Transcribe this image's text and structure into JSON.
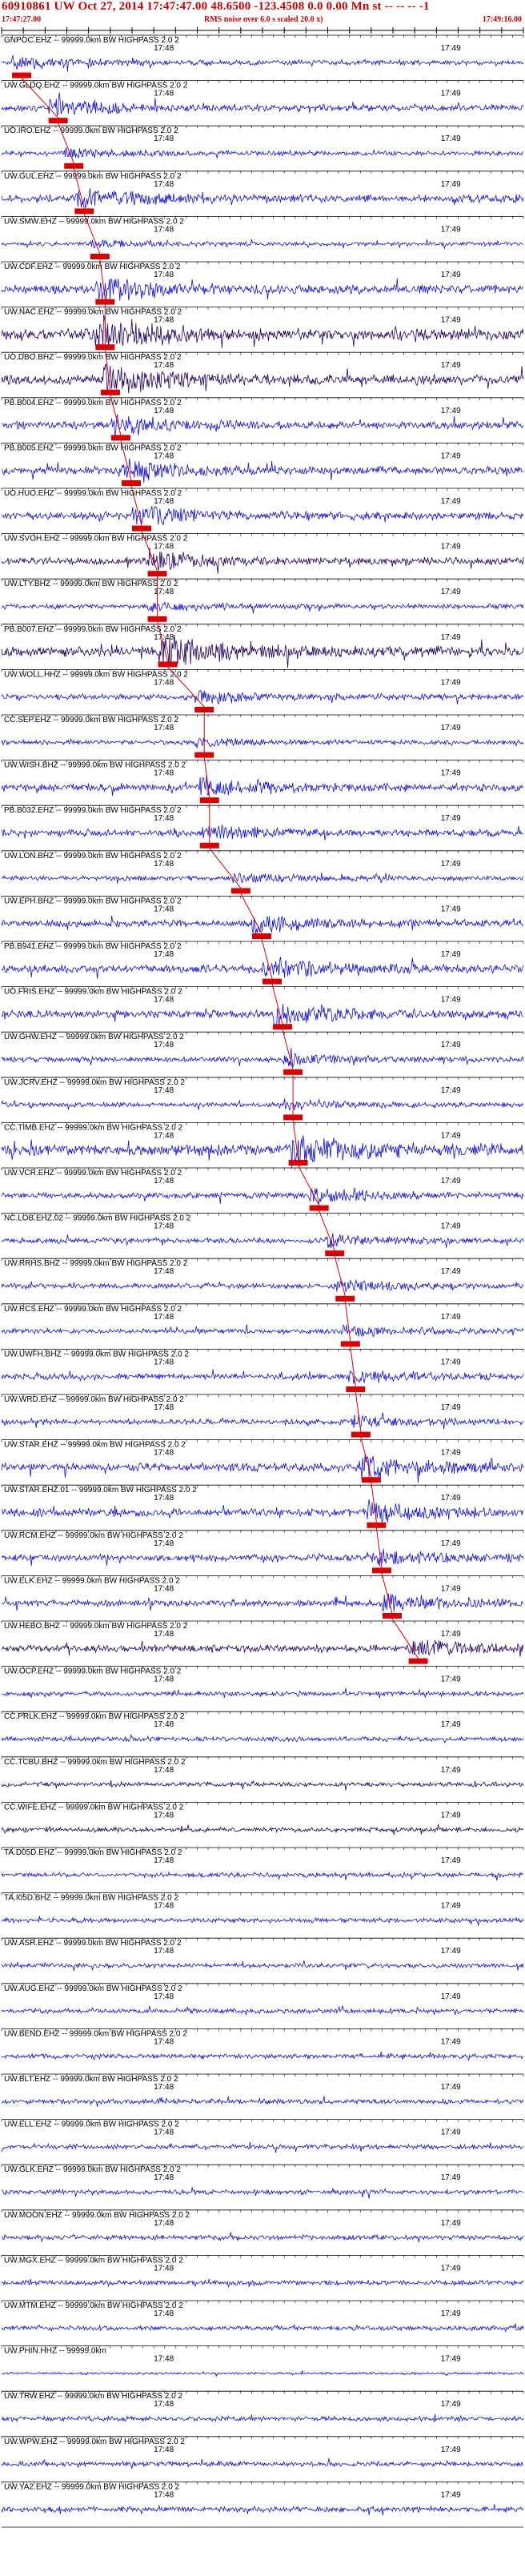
{
  "header": {
    "title": "60910861 UW Oct 27, 2014 17:47:47.00   48.6500  -123.4508  0.0 0.00 Mn st -- -- --  -1",
    "start_time": "17:47:27.00",
    "rms_note": "RMS noise over 6.0 s scaled 20.0 x)",
    "end_time": "17:49:16.00"
  },
  "colors": {
    "trace": "#1010e0",
    "trace_dark": "#200060",
    "pick": "#dd0000",
    "text": "#000000",
    "header": "#cc0000"
  },
  "chart_data": {
    "type": "line",
    "title": "60910861 UW Oct 27, 2014 17:47:47.00   48.6500  -123.4508  0.0 0.00 Mn st -- -- --  -1",
    "x_tick_labels": [
      "17:48",
      "17:49"
    ],
    "time_range": [
      "17:47:27.00",
      "17:49:16.00"
    ],
    "series": [
      {
        "name": "GNPOC.EHZ -- 99999.0km BW HIGHPASS 2.0 2",
        "pick": 0.02,
        "amp": 0.5,
        "dark": false
      },
      {
        "name": "UW.GLDQ.EHZ -- 99999.0km BW HIGHPASS 2.0 2",
        "pick": 0.09,
        "amp": 0.7,
        "dark": false
      },
      {
        "name": "UO.IRO.EHZ -- 99999.0km BW HIGHPASS 2.0 2",
        "pick": 0.12,
        "amp": 0.4,
        "dark": false
      },
      {
        "name": "UW.GUL.EHZ -- 99999.0km BW HIGHPASS 2.0 2",
        "pick": 0.14,
        "amp": 0.9,
        "dark": false
      },
      {
        "name": "UW.SMW.EHZ -- 99999.0km BW HIGHPASS 2.0 2",
        "pick": 0.17,
        "amp": 0.3,
        "dark": false
      },
      {
        "name": "UW.CDF.EHZ -- 99999.0km BW HIGHPASS 2.0 2",
        "pick": 0.18,
        "amp": 1.0,
        "dark": false
      },
      {
        "name": "UW.NAC.EHZ -- 99999.0km BW HIGHPASS 2.0 2",
        "pick": 0.18,
        "amp": 1.4,
        "dark": true
      },
      {
        "name": "UO.DBO.BHZ -- 99999.0km BW HIGHPASS 2.0 2",
        "pick": 0.19,
        "amp": 1.2,
        "dark": true
      },
      {
        "name": "PB.B004.EHZ -- 99999.0km BW HIGHPASS 2.0 2",
        "pick": 0.21,
        "amp": 0.8,
        "dark": false
      },
      {
        "name": "PB.B005.EHZ -- 99999.0km BW HIGHPASS 2.0 2",
        "pick": 0.23,
        "amp": 0.9,
        "dark": false
      },
      {
        "name": "UO.HUO.EHZ -- 99999.0km BW HIGHPASS 2.0 2",
        "pick": 0.25,
        "amp": 0.9,
        "dark": false
      },
      {
        "name": "UW.SVOH.EHZ -- 99999.0km BW HIGHPASS 2.0 2",
        "pick": 0.28,
        "amp": 0.8,
        "dark": true
      },
      {
        "name": "UW.LTY.BHZ -- 99999.0km BW HIGHPASS 2.0 2",
        "pick": 0.28,
        "amp": 0.4,
        "dark": false
      },
      {
        "name": "PB.B007.EHZ -- 99999.0km BW HIGHPASS 2.0 2",
        "pick": 0.3,
        "amp": 1.3,
        "dark": true
      },
      {
        "name": "UW.WOLL.HHZ -- 99999.0km BW HIGHPASS 2.0 2",
        "pick": 0.37,
        "amp": 0.6,
        "dark": false
      },
      {
        "name": "CC.SEP.EHZ -- 99999.0km BW HIGHPASS 2.0 2",
        "pick": 0.37,
        "amp": 0.4,
        "dark": false
      },
      {
        "name": "UW.WISH.BHZ -- 99999.0km BW HIGHPASS 2.0 2",
        "pick": 0.38,
        "amp": 0.8,
        "dark": false
      },
      {
        "name": "PB.B032.EHZ -- 99999.0km BW HIGHPASS 2.0 2",
        "pick": 0.38,
        "amp": 0.7,
        "dark": false
      },
      {
        "name": "UW.LON.BHZ -- 99999.0km BW HIGHPASS 2.0 2",
        "pick": 0.44,
        "amp": 0.4,
        "dark": false
      },
      {
        "name": "UW.EPH.BHZ -- 99999.0km BW HIGHPASS 2.0 2",
        "pick": 0.48,
        "amp": 0.8,
        "dark": false
      },
      {
        "name": "PB.B941.EHZ -- 99999.0km BW HIGHPASS 2.0 2",
        "pick": 0.5,
        "amp": 0.9,
        "dark": false
      },
      {
        "name": "UO.FRIS.EHZ -- 99999.0km BW HIGHPASS 2.0 2",
        "pick": 0.52,
        "amp": 0.9,
        "dark": false
      },
      {
        "name": "UW.GHW.EHZ -- 99999.0km BW HIGHPASS 2.0 2",
        "pick": 0.54,
        "amp": 0.5,
        "dark": false
      },
      {
        "name": "UW.JCRV.EHZ -- 99999.0km BW HIGHPASS 2.0 2",
        "pick": 0.54,
        "amp": 0.4,
        "dark": false
      },
      {
        "name": "CC.TIMB.EHZ -- 99999.0km BW HIGHPASS 2.0 2",
        "pick": 0.55,
        "amp": 1.4,
        "dark": false
      },
      {
        "name": "UW.VCR.EHZ -- 99999.0km BW HIGHPASS 2.0 2",
        "pick": 0.59,
        "amp": 0.6,
        "dark": false
      },
      {
        "name": "NC.LOB.EHZ.02 -- 99999.0km BW HIGHPASS 2.0 2",
        "pick": 0.62,
        "amp": 0.5,
        "dark": false
      },
      {
        "name": "UW.RRHS.BHZ -- 99999.0km BW HIGHPASS 2.0 2",
        "pick": 0.64,
        "amp": 0.5,
        "dark": false
      },
      {
        "name": "UW.RCS.EHZ -- 99999.0km BW HIGHPASS 2.0 2",
        "pick": 0.65,
        "amp": 0.5,
        "dark": false
      },
      {
        "name": "UW.UWFH.BHZ -- 99999.0km BW HIGHPASS 2.0 2",
        "pick": 0.66,
        "amp": 0.6,
        "dark": false
      },
      {
        "name": "UW.WRD.EHZ -- 99999.0km BW HIGHPASS 2.0 2",
        "pick": 0.67,
        "amp": 0.5,
        "dark": false
      },
      {
        "name": "UW.STAR.EHZ -- 99999.0km BW HIGHPASS 2.0 2",
        "pick": 0.69,
        "amp": 1.0,
        "dark": false
      },
      {
        "name": "UW.STAR.EHZ.01 -- 99999.0km BW HIGHPASS 2.0 2",
        "pick": 0.7,
        "amp": 0.9,
        "dark": false
      },
      {
        "name": "UW.RCM.EHZ -- 99999.0km BW HIGHPASS 2.0 2",
        "pick": 0.71,
        "amp": 0.7,
        "dark": false
      },
      {
        "name": "UW.ELK.EHZ -- 99999.0km BW HIGHPASS 2.0 2",
        "pick": 0.73,
        "amp": 0.7,
        "dark": false
      },
      {
        "name": "UW.HEBO.BHZ -- 99999.0km BW HIGHPASS 2.0 2",
        "pick": 0.78,
        "amp": 0.8,
        "dark": true
      },
      {
        "name": "UW.OCP.EHZ -- 99999.0km BW HIGHPASS 2.0 2",
        "pick": null,
        "amp": 0.4,
        "dark": false
      },
      {
        "name": "CC.PRLK.EHZ -- 99999.0km BW HIGHPASS 2.0 2",
        "pick": null,
        "amp": 0.4,
        "dark": false
      },
      {
        "name": "CC.TCBU.BHZ -- 99999.0km BW HIGHPASS 2.0 2",
        "pick": null,
        "amp": 0.4,
        "dark": true
      },
      {
        "name": "CC.WIFE.EHZ -- 99999.0km BW HIGHPASS 2.0 2",
        "pick": null,
        "amp": 0.4,
        "dark": true
      },
      {
        "name": "TA.D05D.EHZ -- 99999.0km BW HIGHPASS 2.0 2",
        "pick": null,
        "amp": 0.4,
        "dark": false
      },
      {
        "name": "TA.I05D.BHZ -- 99999.0km BW HIGHPASS 2.0 2",
        "pick": null,
        "amp": 0.4,
        "dark": false
      },
      {
        "name": "UW.ASR.EHZ -- 99999.0km BW HIGHPASS 2.0 2",
        "pick": null,
        "amp": 0.4,
        "dark": false
      },
      {
        "name": "UW.AUG.EHZ -- 99999.0km BW HIGHPASS 2.0 2",
        "pick": null,
        "amp": 0.4,
        "dark": false
      },
      {
        "name": "UW.BEND.EHZ -- 99999.0km BW HIGHPASS 2.0 2",
        "pick": null,
        "amp": 0.4,
        "dark": false
      },
      {
        "name": "UW.BLT.EHZ -- 99999.0km BW HIGHPASS 2.0 2",
        "pick": null,
        "amp": 0.4,
        "dark": false
      },
      {
        "name": "UW.ELL.EHZ -- 99999.0km BW HIGHPASS 2.0 2",
        "pick": null,
        "amp": 0.4,
        "dark": false
      },
      {
        "name": "UW.GLK.EHZ -- 99999.0km BW HIGHPASS 2.0 2",
        "pick": null,
        "amp": 0.4,
        "dark": false
      },
      {
        "name": "UW.MOON.EHZ -- 99999.0km BW HIGHPASS 2.0 2",
        "pick": null,
        "amp": 0.4,
        "dark": false
      },
      {
        "name": "UW.MGX.EHZ -- 99999.0km BW HIGHPASS 2.0 2",
        "pick": null,
        "amp": 0.4,
        "dark": false
      },
      {
        "name": "UW.MTM.EHZ -- 99999.0km BW HIGHPASS 2.0 2",
        "pick": null,
        "amp": 0.4,
        "dark": false
      },
      {
        "name": "UW.PHIN.HHZ -- 99999.0km",
        "pick": null,
        "amp": 0.05,
        "dark": false
      },
      {
        "name": "UW.TRW.EHZ -- 99999.0km BW HIGHPASS 2.0 2",
        "pick": null,
        "amp": 0.4,
        "dark": false
      },
      {
        "name": "UW.WPW.EHZ -- 99999.0km BW HIGHPASS 2.0 2",
        "pick": null,
        "amp": 0.4,
        "dark": false
      },
      {
        "name": "UW.YA2.EHZ -- 99999.0km BW HIGHPASS 2.0 2",
        "pick": null,
        "amp": 0.5,
        "dark": false
      }
    ]
  }
}
